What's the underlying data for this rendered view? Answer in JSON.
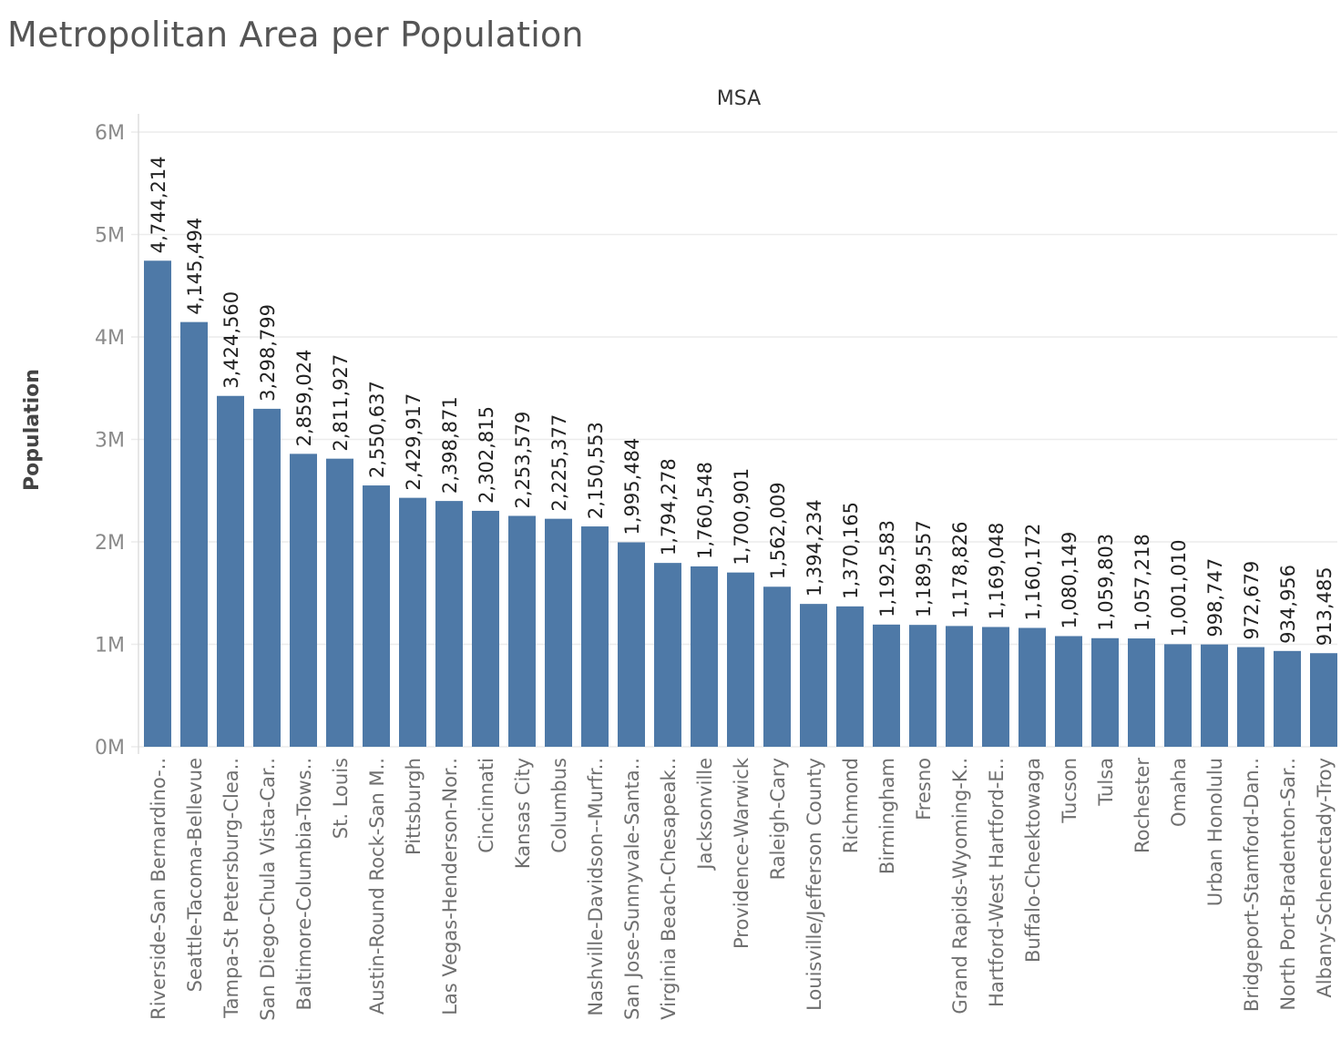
{
  "chart_data": {
    "type": "bar",
    "title": "Metropolitan Area per Population",
    "header_label": "MSA",
    "ylabel": "Population",
    "ylim": [
      0,
      6000000
    ],
    "yticks": [
      {
        "value": 0,
        "label": "0M"
      },
      {
        "value": 1000000,
        "label": "1M"
      },
      {
        "value": 2000000,
        "label": "2M"
      },
      {
        "value": 3000000,
        "label": "3M"
      },
      {
        "value": 4000000,
        "label": "4M"
      },
      {
        "value": 5000000,
        "label": "5M"
      },
      {
        "value": 6000000,
        "label": "6M"
      }
    ],
    "grid": true,
    "bar_color": "#4e79a7",
    "categories": [
      "Riverside-San Bernardino-..",
      "Seattle-Tacoma-Bellevue",
      "Tampa-St Petersburg-Clea..",
      "San Diego-Chula Vista-Car..",
      "Baltimore-Columbia-Tows..",
      "St. Louis",
      "Austin-Round Rock-San M..",
      "Pittsburgh",
      "Las Vegas-Henderson-Nor..",
      "Cincinnati",
      "Kansas City",
      "Columbus",
      "Nashville-Davidson--Murfr..",
      "San Jose-Sunnyvale-Santa..",
      "Virginia Beach-Chesapeak..",
      "Jacksonville",
      "Providence-Warwick",
      "Raleigh-Cary",
      "Louisville/Jefferson County",
      "Richmond",
      "Birmingham",
      "Fresno",
      "Grand Rapids-Wyoming-K..",
      "Hartford-West Hartford-E..",
      "Buffalo-Cheektowaga",
      "Tucson",
      "Tulsa",
      "Rochester",
      "Omaha",
      "Urban Honolulu",
      "Bridgeport-Stamford-Dan..",
      "North Port-Bradenton-Sar..",
      "Albany-Schenectady-Troy"
    ],
    "values": [
      4744214,
      4145494,
      3424560,
      3298799,
      2859024,
      2811927,
      2550637,
      2429917,
      2398871,
      2302815,
      2253579,
      2225377,
      2150553,
      1995484,
      1794278,
      1760548,
      1700901,
      1562009,
      1394234,
      1370165,
      1192583,
      1189557,
      1178826,
      1169048,
      1160172,
      1080149,
      1059803,
      1057218,
      1001010,
      998747,
      972679,
      934956,
      913485
    ],
    "value_labels": [
      "4,744,214",
      "4,145,494",
      "3,424,560",
      "3,298,799",
      "2,859,024",
      "2,811,927",
      "2,550,637",
      "2,429,917",
      "2,398,871",
      "2,302,815",
      "2,253,579",
      "2,225,377",
      "2,150,553",
      "1,995,484",
      "1,794,278",
      "1,760,548",
      "1,700,901",
      "1,562,009",
      "1,394,234",
      "1,370,165",
      "1,192,583",
      "1,189,557",
      "1,178,826",
      "1,169,048",
      "1,160,172",
      "1,080,149",
      "1,059,803",
      "1,057,218",
      "1,001,010",
      "998,747",
      "972,679",
      "934,956",
      "913,485"
    ]
  }
}
